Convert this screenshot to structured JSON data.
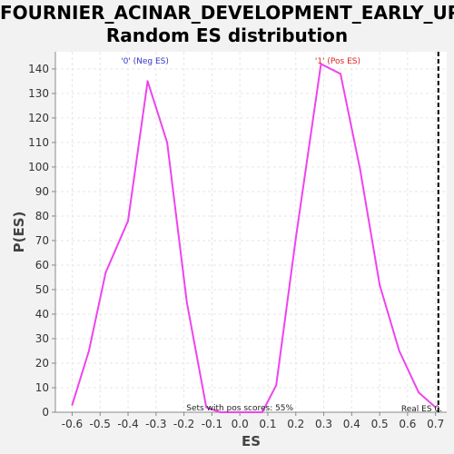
{
  "chart_data": {
    "type": "line",
    "title_lines": [
      "FOURNIER_ACINAR_DEVELOPMENT_EARLY_UP:",
      "Random ES distribution"
    ],
    "xlabel": "ES",
    "ylabel": "P(ES)",
    "xlim": [
      -0.66,
      0.74
    ],
    "ylim": [
      0,
      147
    ],
    "xticks": [
      -0.6,
      -0.5,
      -0.4,
      -0.3,
      -0.2,
      -0.1,
      0.0,
      0.1,
      0.2,
      0.3,
      0.4,
      0.5,
      0.6,
      0.7
    ],
    "xtick_labels": [
      "-0.6",
      "-0.5",
      "-0.4",
      "-0.3",
      "-0.2",
      "-0.1",
      "0.0",
      "0.1",
      "0.2",
      "0.3",
      "0.4",
      "0.5",
      "0.6",
      "0.7"
    ],
    "yticks": [
      0,
      10,
      20,
      30,
      40,
      50,
      60,
      70,
      80,
      90,
      100,
      110,
      120,
      130,
      140
    ],
    "ytick_labels": [
      "0",
      "10",
      "20",
      "30",
      "40",
      "50",
      "60",
      "70",
      "80",
      "90",
      "100",
      "110",
      "120",
      "130",
      "140"
    ],
    "grid": true,
    "series": [
      {
        "color": "#ee44ee",
        "x": [
          -0.6,
          -0.54,
          -0.48,
          -0.4,
          -0.33,
          -0.26,
          -0.19,
          -0.12,
          -0.07,
          0.0,
          0.08,
          0.13,
          0.2,
          0.29,
          0.36,
          0.43,
          0.5,
          0.57,
          0.64,
          0.7
        ],
        "y": [
          3,
          25,
          57,
          78,
          135,
          110,
          45,
          2,
          0,
          0,
          0,
          11,
          71,
          142,
          138,
          99,
          52,
          25,
          8,
          2
        ]
      }
    ],
    "real_es": {
      "x": 0.71,
      "label": "Real ES 0."
    },
    "annotations": {
      "neg": {
        "text": "'0' (Neg ES)",
        "x": -0.34,
        "color": "#3333cc"
      },
      "pos": {
        "text": "'1' (Pos ES)",
        "x": 0.35,
        "color": "#dd2222"
      },
      "pos_scores": {
        "text": "Sets with pos scores: 55%",
        "x": 0.0
      }
    },
    "colors": {
      "plot_bg": "#ffffff",
      "page_bg": "#f2f2f2",
      "grid": "#e6e6e6",
      "real_es_line": "#000000"
    }
  }
}
